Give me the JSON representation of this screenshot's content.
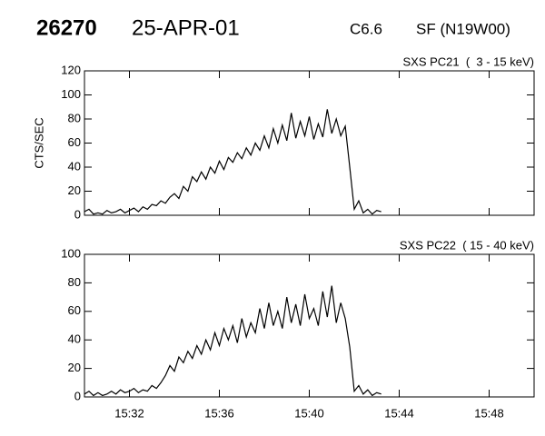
{
  "header": {
    "id": "26270",
    "date": "25-APR-01",
    "class": "C6.6",
    "flare": "SF (N19W00)"
  },
  "chart_data": [
    {
      "type": "line",
      "subtitle": "SXS PC21  (  3 - 15 keV)",
      "ylabel": "CTS/SEC",
      "color": "#000000",
      "x": [
        930.0,
        930.2,
        930.4,
        930.6,
        930.8,
        931.0,
        931.2,
        931.4,
        931.6,
        931.8,
        932.0,
        932.2,
        932.4,
        932.6,
        932.8,
        933.0,
        933.2,
        933.4,
        933.6,
        933.8,
        934.0,
        934.2,
        934.4,
        934.6,
        934.8,
        935.0,
        935.2,
        935.4,
        935.6,
        935.8,
        936.0,
        936.2,
        936.4,
        936.6,
        936.8,
        937.0,
        937.2,
        937.4,
        937.6,
        937.8,
        938.0,
        938.2,
        938.4,
        938.6,
        938.8,
        939.0,
        939.2,
        939.4,
        939.6,
        939.8,
        940.0,
        940.2,
        940.4,
        940.6,
        940.8,
        941.0,
        941.2,
        941.4,
        941.6,
        941.8,
        942.0,
        942.2,
        942.4,
        942.6,
        942.8,
        943.0,
        943.2
      ],
      "values": [
        3,
        5,
        1,
        2,
        1,
        4,
        2,
        3,
        5,
        2,
        4,
        6,
        3,
        7,
        5,
        9,
        8,
        12,
        10,
        15,
        18,
        14,
        24,
        20,
        32,
        28,
        36,
        30,
        40,
        35,
        45,
        38,
        48,
        44,
        52,
        47,
        56,
        50,
        60,
        54,
        66,
        56,
        72,
        60,
        75,
        62,
        85,
        64,
        78,
        66,
        82,
        63,
        76,
        65,
        88,
        68,
        80,
        66,
        74,
        40,
        5,
        12,
        2,
        5,
        1,
        4,
        3
      ],
      "xlim": [
        930,
        950
      ],
      "ylim": [
        0,
        120
      ],
      "yticks": [
        0,
        20,
        40,
        60,
        80,
        100,
        120
      ]
    },
    {
      "type": "line",
      "subtitle": "SXS PC22  ( 15 - 40 keV)",
      "color": "#000000",
      "x": [
        930.0,
        930.2,
        930.4,
        930.6,
        930.8,
        931.0,
        931.2,
        931.4,
        931.6,
        931.8,
        932.0,
        932.2,
        932.4,
        932.6,
        932.8,
        933.0,
        933.2,
        933.4,
        933.6,
        933.8,
        934.0,
        934.2,
        934.4,
        934.6,
        934.8,
        935.0,
        935.2,
        935.4,
        935.6,
        935.8,
        936.0,
        936.2,
        936.4,
        936.6,
        936.8,
        937.0,
        937.2,
        937.4,
        937.6,
        937.8,
        938.0,
        938.2,
        938.4,
        938.6,
        938.8,
        939.0,
        939.2,
        939.4,
        939.6,
        939.8,
        940.0,
        940.2,
        940.4,
        940.6,
        940.8,
        941.0,
        941.2,
        941.4,
        941.6,
        941.8,
        942.0,
        942.2,
        942.4,
        942.6,
        942.8,
        943.0,
        943.2
      ],
      "values": [
        2,
        4,
        1,
        3,
        1,
        2,
        4,
        2,
        5,
        3,
        4,
        6,
        3,
        5,
        4,
        8,
        6,
        10,
        15,
        22,
        18,
        28,
        24,
        32,
        27,
        36,
        30,
        40,
        33,
        45,
        36,
        48,
        40,
        50,
        38,
        55,
        42,
        52,
        45,
        62,
        48,
        66,
        50,
        60,
        48,
        70,
        52,
        65,
        50,
        72,
        55,
        62,
        50,
        74,
        56,
        78,
        52,
        66,
        55,
        35,
        4,
        8,
        2,
        5,
        1,
        3,
        2
      ],
      "xlim": [
        930,
        950
      ],
      "ylim": [
        0,
        100
      ],
      "yticks": [
        0,
        20,
        40,
        60,
        80,
        100
      ],
      "xticks": [
        {
          "value": 932,
          "label": "15:32"
        },
        {
          "value": 936,
          "label": "15:36"
        },
        {
          "value": 940,
          "label": "15:40"
        },
        {
          "value": 944,
          "label": "15:44"
        },
        {
          "value": 948,
          "label": "15:48"
        }
      ]
    }
  ]
}
